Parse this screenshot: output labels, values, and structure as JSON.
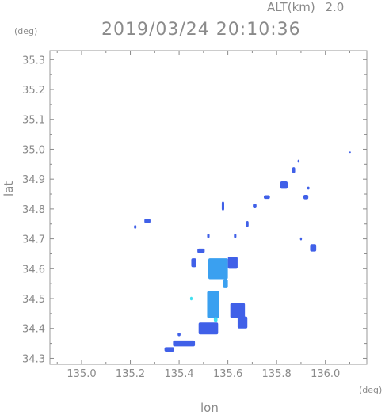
{
  "header": {
    "alt_label": "ALT(km)",
    "alt_value": "2.0",
    "datetime": "2019/03/24 20:10:36"
  },
  "chart_data": {
    "type": "heatmap",
    "title": "2019/03/24 20:10:36",
    "xlabel": "lon",
    "ylabel": "lat",
    "x_unit": "(deg)",
    "y_unit": "(deg)",
    "xlim": [
      134.87,
      136.17
    ],
    "ylim": [
      34.28,
      35.33
    ],
    "xticks": [
      "135.0",
      "135.2",
      "135.4",
      "135.6",
      "135.8",
      "136.0"
    ],
    "yticks": [
      "34.3",
      "34.4",
      "34.5",
      "34.6",
      "34.7",
      "34.8",
      "34.9",
      "35.0",
      "35.1",
      "35.2",
      "35.3"
    ],
    "grid": false,
    "colors": {
      "low": "#4060e8",
      "mid": "#3aa0f0",
      "high": "#40e0f0",
      "axis": "#8a8a8a"
    },
    "echoes": [
      {
        "lon": 135.56,
        "lat": 34.6,
        "dlon": 0.08,
        "dlat": 0.07,
        "level": "mid"
      },
      {
        "lon": 135.54,
        "lat": 34.48,
        "dlon": 0.05,
        "dlat": 0.09,
        "level": "mid"
      },
      {
        "lon": 135.52,
        "lat": 34.4,
        "dlon": 0.08,
        "dlat": 0.04,
        "level": "low"
      },
      {
        "lon": 135.42,
        "lat": 34.35,
        "dlon": 0.09,
        "dlat": 0.02,
        "level": "low"
      },
      {
        "lon": 135.36,
        "lat": 34.33,
        "dlon": 0.04,
        "dlat": 0.015,
        "level": "low"
      },
      {
        "lon": 135.64,
        "lat": 34.46,
        "dlon": 0.06,
        "dlat": 0.05,
        "level": "low"
      },
      {
        "lon": 135.66,
        "lat": 34.42,
        "dlon": 0.04,
        "dlat": 0.04,
        "level": "low"
      },
      {
        "lon": 135.62,
        "lat": 34.62,
        "dlon": 0.04,
        "dlat": 0.04,
        "level": "low"
      },
      {
        "lon": 135.46,
        "lat": 34.62,
        "dlon": 0.02,
        "dlat": 0.03,
        "level": "low"
      },
      {
        "lon": 135.49,
        "lat": 34.66,
        "dlon": 0.03,
        "dlat": 0.015,
        "level": "low"
      },
      {
        "lon": 135.59,
        "lat": 34.55,
        "dlon": 0.02,
        "dlat": 0.03,
        "level": "mid"
      },
      {
        "lon": 135.55,
        "lat": 34.43,
        "dlon": 0.015,
        "dlat": 0.015,
        "level": "high"
      },
      {
        "lon": 135.45,
        "lat": 34.5,
        "dlon": 0.01,
        "dlat": 0.012,
        "level": "high"
      },
      {
        "lon": 135.4,
        "lat": 34.38,
        "dlon": 0.012,
        "dlat": 0.012,
        "level": "low"
      },
      {
        "lon": 135.27,
        "lat": 34.76,
        "dlon": 0.025,
        "dlat": 0.015,
        "level": "low"
      },
      {
        "lon": 135.22,
        "lat": 34.74,
        "dlon": 0.01,
        "dlat": 0.012,
        "level": "low"
      },
      {
        "lon": 135.58,
        "lat": 34.81,
        "dlon": 0.01,
        "dlat": 0.03,
        "level": "low"
      },
      {
        "lon": 135.52,
        "lat": 34.71,
        "dlon": 0.01,
        "dlat": 0.015,
        "level": "low"
      },
      {
        "lon": 135.63,
        "lat": 34.71,
        "dlon": 0.01,
        "dlat": 0.015,
        "level": "low"
      },
      {
        "lon": 135.68,
        "lat": 34.75,
        "dlon": 0.01,
        "dlat": 0.02,
        "level": "low"
      },
      {
        "lon": 135.71,
        "lat": 34.81,
        "dlon": 0.015,
        "dlat": 0.015,
        "level": "low"
      },
      {
        "lon": 135.76,
        "lat": 34.84,
        "dlon": 0.025,
        "dlat": 0.012,
        "level": "low"
      },
      {
        "lon": 135.83,
        "lat": 34.88,
        "dlon": 0.03,
        "dlat": 0.025,
        "level": "low"
      },
      {
        "lon": 135.87,
        "lat": 34.93,
        "dlon": 0.012,
        "dlat": 0.02,
        "level": "low"
      },
      {
        "lon": 135.89,
        "lat": 34.96,
        "dlon": 0.008,
        "dlat": 0.01,
        "level": "low"
      },
      {
        "lon": 135.92,
        "lat": 34.84,
        "dlon": 0.02,
        "dlat": 0.015,
        "level": "low"
      },
      {
        "lon": 135.93,
        "lat": 34.87,
        "dlon": 0.01,
        "dlat": 0.01,
        "level": "low"
      },
      {
        "lon": 135.95,
        "lat": 34.67,
        "dlon": 0.025,
        "dlat": 0.025,
        "level": "low"
      },
      {
        "lon": 135.9,
        "lat": 34.7,
        "dlon": 0.008,
        "dlat": 0.01,
        "level": "low"
      },
      {
        "lon": 136.1,
        "lat": 34.99,
        "dlon": 0.004,
        "dlat": 0.005,
        "level": "low"
      }
    ]
  }
}
